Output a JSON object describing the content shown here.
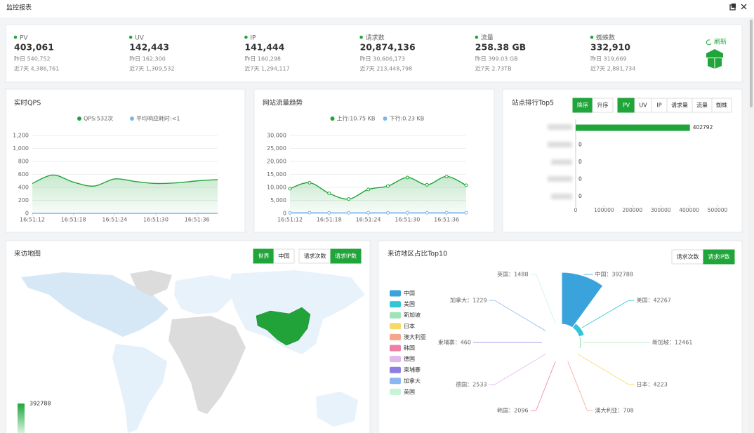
{
  "header": {
    "title": "监控报表"
  },
  "stats": [
    {
      "label": "PV",
      "value": "403,061",
      "yesterday": "昨日 540,752",
      "week": "近7天 4,386,761"
    },
    {
      "label": "UV",
      "value": "142,443",
      "yesterday": "昨日 162,300",
      "week": "近7天 1,309,532"
    },
    {
      "label": "IP",
      "value": "141,444",
      "yesterday": "昨日 160,298",
      "week": "近7天 1,294,117"
    },
    {
      "label": "请求数",
      "value": "20,874,136",
      "yesterday": "昨日 30,606,173",
      "week": "近7天 213,448,798"
    },
    {
      "label": "流量",
      "value": "258.38 GB",
      "yesterday": "昨日 399.03 GB",
      "week": "近7天 2.73TB"
    },
    {
      "label": "蜘蛛数",
      "value": "332,910",
      "yesterday": "昨日 319,669",
      "week": "近7天 2,881,734"
    }
  ],
  "refresh": "刷新",
  "qps": {
    "type": "line",
    "title": "实时QPS",
    "x": [
      "16:51:12",
      null,
      "16:51:18",
      null,
      "16:51:24",
      null,
      "16:51:30",
      null,
      "16:51:36",
      null
    ],
    "series": [
      {
        "name": "QPS:532次",
        "color": "#20a53a",
        "values": [
          460,
          590,
          480,
          420,
          530,
          490,
          460,
          470,
          500,
          520
        ]
      },
      {
        "name": "平均响应耗时:<1",
        "color": "#7cb5ec",
        "values": [
          0,
          0,
          0,
          0,
          0,
          0,
          0,
          0,
          0,
          0
        ]
      }
    ],
    "ylim": [
      0,
      1200
    ],
    "yticks": [
      0,
      200,
      400,
      600,
      800,
      {
        "value": 1000,
        "label": "1,000"
      },
      {
        "value": 1200,
        "label": "1,200"
      }
    ]
  },
  "traffic": {
    "type": "line",
    "title": "网站流量趋势",
    "x": [
      "16:51:12",
      null,
      "16:51:18",
      null,
      "16:51:24",
      null,
      "16:51:30",
      null,
      "16:51:36",
      null
    ],
    "series": [
      {
        "name": "上行:10.75 KB",
        "color": "#20a53a",
        "values": [
          9500,
          11800,
          7700,
          5500,
          9200,
          10500,
          13800,
          11000,
          14200,
          10800
        ]
      },
      {
        "name": "下行:0.23 KB",
        "color": "#7cb5ec",
        "values": [
          200,
          250,
          200,
          200,
          220,
          200,
          230,
          200,
          240,
          230
        ]
      }
    ],
    "ylim": [
      0,
      30000
    ],
    "yticks": [
      0,
      {
        "value": 5000,
        "label": "5,000"
      },
      {
        "value": 10000,
        "label": "10,000"
      },
      {
        "value": 15000,
        "label": "15,000"
      },
      {
        "value": 20000,
        "label": "20,000"
      },
      {
        "value": 25000,
        "label": "25,000"
      },
      {
        "value": 30000,
        "label": "30,000"
      }
    ]
  },
  "top5": {
    "type": "bar",
    "title": "站点排行Top5",
    "sort": [
      "降序",
      "升序"
    ],
    "tabs": [
      "PV",
      "UV",
      "IP",
      "请求量",
      "流量",
      "蜘蛛"
    ],
    "values": [
      402792,
      0,
      0,
      0,
      0
    ],
    "color": "#20a53a",
    "xlim": [
      0,
      500000
    ],
    "xticks": [
      0,
      100000,
      200000,
      300000,
      400000,
      500000
    ]
  },
  "map": {
    "title": "来访地图",
    "scope": [
      "世界",
      "中国"
    ],
    "metric": [
      "请求次数",
      "请求IP数"
    ],
    "legend_max": 392788
  },
  "region": {
    "type": "rose",
    "title": "来访地区占比Top10",
    "metric": [
      "请求次数",
      "请求IP数"
    ],
    "categories": [
      "中国",
      "美国",
      "新加坡",
      "日本",
      "澳大利亚",
      "韩国",
      "德国",
      "柬埔寨",
      "加拿大",
      "英国"
    ],
    "values": [
      392788,
      42267,
      12461,
      4223,
      708,
      2096,
      2533,
      460,
      1229,
      1488
    ],
    "value_labels": [
      "中国：392788",
      "美国：42267",
      "新加坡：12461",
      "日本：4223",
      "澳大利亚：708",
      "韩国：2096",
      "德国：2533",
      "柬埔寨：460",
      "加拿大：1229",
      "英国：1488"
    ],
    "colors": [
      "#3ba3dc",
      "#36c5d8",
      "#a0e3b8",
      "#f7d967",
      "#f6a58a",
      "#ee7ea5",
      "#e2b8ec",
      "#8c7fe0",
      "#8ab7f0",
      "#c6f5d6"
    ]
  }
}
